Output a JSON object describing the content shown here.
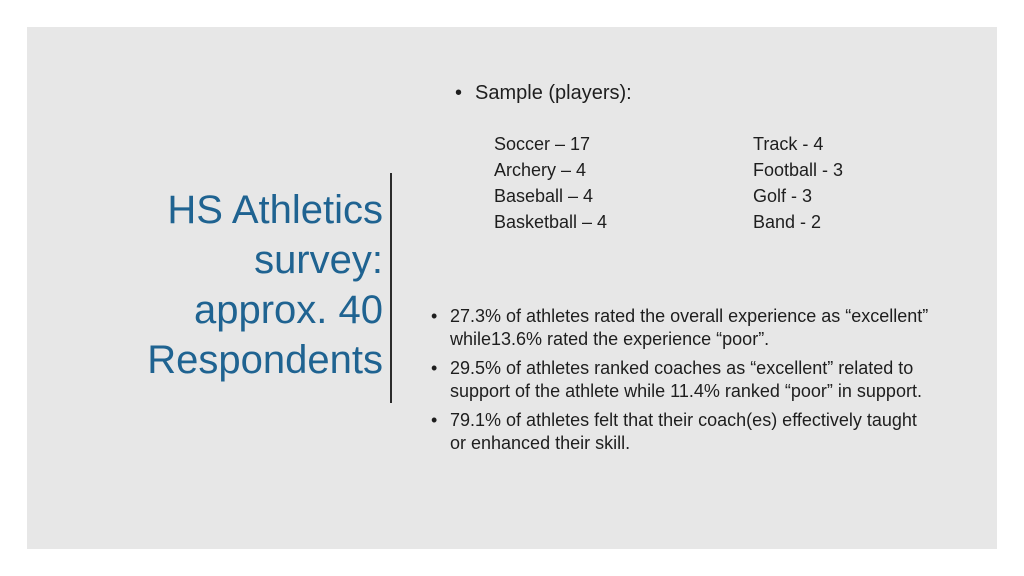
{
  "slide": {
    "title_lines": [
      "HS Athletics",
      "survey:",
      "approx. 40",
      "Respondents"
    ],
    "sample": {
      "heading": "Sample (players):",
      "left_column": [
        "Soccer – 17",
        "Archery – 4",
        "Baseball – 4",
        "Basketball – 4"
      ],
      "right_column": [
        "Track - 4",
        "Football - 3",
        "Golf - 3",
        "Band - 2"
      ]
    },
    "findings": [
      "27.3% of athletes rated the overall experience as “excellent” while13.6% rated the experience “poor”.",
      "29.5% of athletes ranked coaches as “excellent” related to support of the athlete while 11.4% ranked “poor” in support.",
      "79.1% of athletes felt that their coach(es) effectively taught or enhanced their skill."
    ]
  }
}
